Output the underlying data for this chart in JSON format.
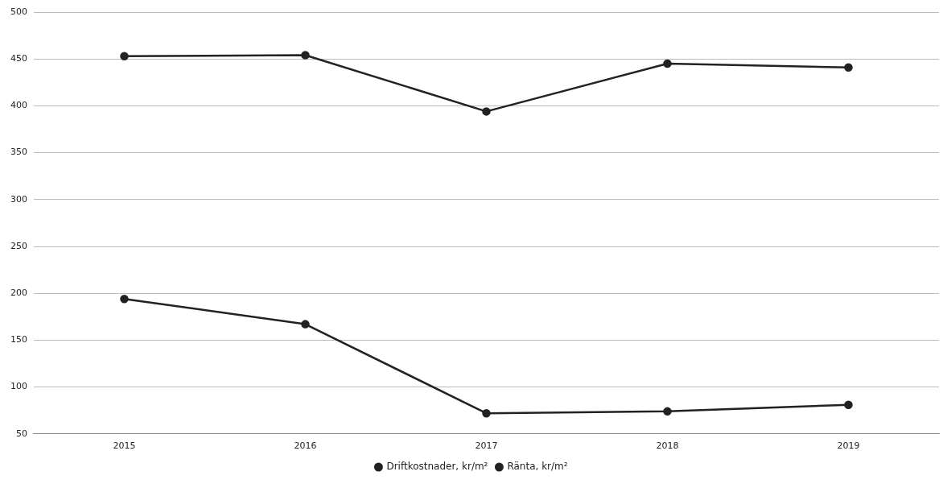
{
  "chart_data": {
    "type": "line",
    "categories": [
      "2015",
      "2016",
      "2017",
      "2018",
      "2019"
    ],
    "series": [
      {
        "name": "Driftkostnader, kr/m²",
        "color": "#222222",
        "values": [
          453,
          454,
          394,
          445,
          441
        ]
      },
      {
        "name": "Ränta, kr/m²",
        "color": "#222222",
        "values": [
          194,
          167,
          72,
          74,
          81
        ]
      }
    ],
    "ylim": [
      50,
      500
    ],
    "yticks": [
      50,
      100,
      150,
      200,
      250,
      300,
      350,
      400,
      450,
      500
    ],
    "grid": "y",
    "legend": "bottom",
    "marker": "circle",
    "line_style": "solid"
  }
}
